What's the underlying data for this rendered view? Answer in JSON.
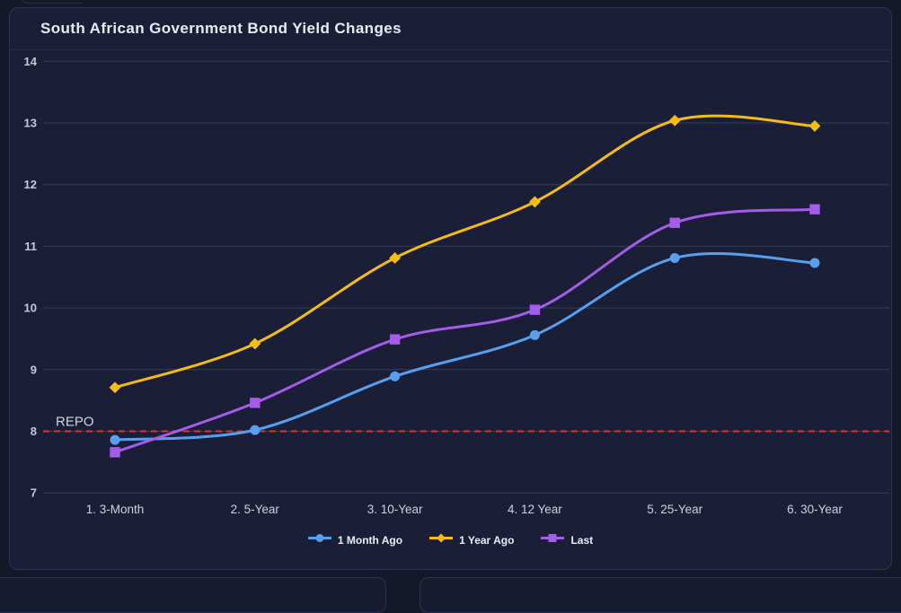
{
  "chart_data": {
    "type": "line",
    "title": "South African Government Bond Yield Changes",
    "categories": [
      "1. 3-Month",
      "2. 5-Year",
      "3. 10-Year",
      "4. 12 Year",
      "5. 25-Year",
      "6. 30-Year"
    ],
    "series": [
      {
        "name": "1 Month Ago",
        "marker": "circle",
        "color": "#57a0ef",
        "values": [
          7.86,
          8.02,
          8.89,
          9.56,
          10.81,
          10.73
        ]
      },
      {
        "name": "1 Year Ago",
        "marker": "diamond",
        "color": "#f5bd11",
        "values": [
          8.71,
          9.42,
          10.81,
          11.72,
          13.04,
          12.95
        ]
      },
      {
        "name": "Last",
        "marker": "square",
        "color": "#a55ce8",
        "values": [
          7.66,
          8.46,
          9.49,
          9.97,
          11.38,
          11.6
        ]
      }
    ],
    "yticks": [
      7,
      8,
      9,
      10,
      11,
      12,
      13,
      14
    ],
    "ylim": [
      7,
      14
    ],
    "grid": true,
    "legend_position": "bottom",
    "reference_line": {
      "label": "REPO",
      "value": 8,
      "color": "#e23333",
      "style": "dashed"
    }
  },
  "colors": {
    "page_background": "#141828",
    "card_background": "#1a1f37",
    "card_border": "#2d3452",
    "gridline": "rgba(168,178,214,0.22)",
    "axis_text": "#c7cad7",
    "title_text": "#e9ebf4"
  }
}
